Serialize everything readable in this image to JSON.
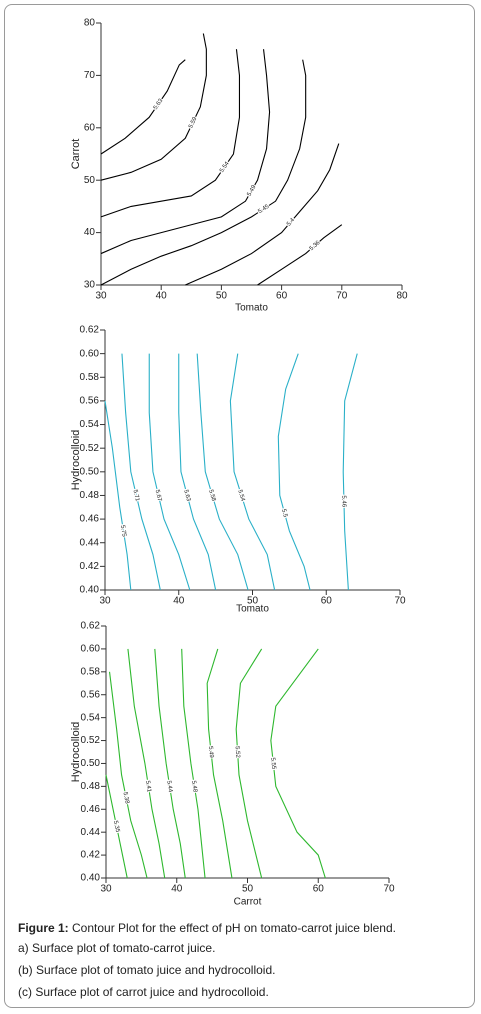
{
  "chart_data": [
    {
      "type": "contour",
      "xlabel": "Tomato",
      "ylabel": "Carrot",
      "color": "#000000",
      "xlim": [
        30,
        80
      ],
      "ylim": [
        30,
        80
      ],
      "xticks": [
        30,
        40,
        50,
        60,
        70,
        80
      ],
      "yticks": [
        30,
        40,
        50,
        60,
        70,
        80
      ],
      "contours": [
        {
          "level": 5.63,
          "x": [
            30,
            34,
            38,
            41,
            43,
            44
          ],
          "y": [
            55,
            58,
            62,
            67,
            72,
            73
          ]
        },
        {
          "level": 5.59,
          "x": [
            30,
            35,
            40,
            44,
            46.5,
            47.5,
            47.5,
            47
          ],
          "y": [
            50,
            51.5,
            54,
            58,
            64,
            70,
            75,
            78
          ]
        },
        {
          "level": 5.54,
          "x": [
            30,
            35,
            40,
            45,
            49,
            52,
            53,
            53,
            52.5
          ],
          "y": [
            43,
            45,
            46,
            47,
            50,
            55,
            62,
            70,
            75
          ]
        },
        {
          "level": 5.49,
          "x": [
            30,
            35,
            40,
            45,
            50,
            54,
            56,
            57.5,
            58,
            57.5,
            57
          ],
          "y": [
            36,
            38.5,
            40,
            41.5,
            43,
            46,
            50,
            56,
            63,
            70,
            75
          ]
        },
        {
          "level": 5.45,
          "x": [
            30,
            35,
            40,
            45,
            50,
            55,
            59,
            61,
            63,
            64,
            64,
            63.5
          ],
          "y": [
            30,
            33,
            35.5,
            37.5,
            40,
            43,
            46,
            50,
            56,
            62,
            70,
            73
          ]
        },
        {
          "level": 5.4,
          "x": [
            44,
            50,
            55,
            60,
            63,
            66,
            68,
            69.5
          ],
          "y": [
            30,
            33,
            36,
            40,
            44,
            48,
            52,
            57
          ]
        },
        {
          "level": 5.36,
          "x": [
            56,
            60,
            64,
            67,
            70
          ],
          "y": [
            30,
            33,
            36,
            39,
            41.5
          ]
        }
      ]
    },
    {
      "type": "contour",
      "xlabel": "Tomato",
      "ylabel": "Hydrocolloid",
      "color": "#2ab0c8",
      "xlim": [
        30,
        70
      ],
      "ylim": [
        0.4,
        0.62
      ],
      "xticks": [
        30,
        40,
        50,
        60,
        70
      ],
      "yticks": [
        {
          "value": 0.4,
          "label": "0.40"
        },
        {
          "value": 0.42,
          "label": "0.42"
        },
        {
          "value": 0.44,
          "label": "0.44"
        },
        {
          "value": 0.46,
          "label": "0.46"
        },
        {
          "value": 0.48,
          "label": "0.48"
        },
        {
          "value": 0.5,
          "label": "0.50"
        },
        {
          "value": 0.52,
          "label": "0.52"
        },
        {
          "value": 0.54,
          "label": "0.54"
        },
        {
          "value": 0.56,
          "label": "0.56"
        },
        {
          "value": 0.58,
          "label": "0.58"
        },
        {
          "value": 0.6,
          "label": "0.60"
        },
        {
          "value": 0.62,
          "label": "0.62"
        }
      ],
      "contours": [
        {
          "level": 5.75,
          "x": [
            30,
            31,
            32,
            33,
            33.5
          ],
          "y": [
            0.56,
            0.52,
            0.47,
            0.43,
            0.4
          ]
        },
        {
          "level": 5.71,
          "x": [
            32.3,
            32.8,
            33.5,
            35,
            36.5,
            37.5
          ],
          "y": [
            0.6,
            0.55,
            0.5,
            0.46,
            0.43,
            0.4
          ]
        },
        {
          "level": 5.67,
          "x": [
            36,
            36,
            36.5,
            38,
            40,
            41.5
          ],
          "y": [
            0.6,
            0.55,
            0.5,
            0.46,
            0.43,
            0.4
          ]
        },
        {
          "level": 5.63,
          "x": [
            40,
            40,
            40.3,
            42,
            44,
            45
          ],
          "y": [
            0.6,
            0.55,
            0.5,
            0.46,
            0.43,
            0.4
          ]
        },
        {
          "level": 5.58,
          "x": [
            42.5,
            43,
            43.6,
            45.5,
            48,
            49.4
          ],
          "y": [
            0.6,
            0.55,
            0.5,
            0.46,
            0.43,
            0.4
          ]
        },
        {
          "level": 5.54,
          "x": [
            48,
            47,
            47.5,
            49.5,
            52,
            53
          ],
          "y": [
            0.6,
            0.56,
            0.5,
            0.46,
            0.43,
            0.4
          ]
        },
        {
          "level": 5.5,
          "x": [
            56.2,
            54.5,
            53.5,
            53.7,
            55,
            57,
            57.8
          ],
          "y": [
            0.6,
            0.57,
            0.53,
            0.48,
            0.45,
            0.42,
            0.4
          ]
        },
        {
          "level": 5.46,
          "x": [
            64.2,
            62.5,
            62.3,
            62.5,
            63
          ],
          "y": [
            0.6,
            0.56,
            0.5,
            0.45,
            0.4
          ]
        }
      ]
    },
    {
      "type": "contour",
      "xlabel": "Carrot",
      "ylabel": "Hydrocolloid",
      "color": "#2eb82e",
      "xlim": [
        30,
        70
      ],
      "ylim": [
        0.4,
        0.62
      ],
      "xticks": [
        30,
        40,
        50,
        60,
        70
      ],
      "yticks": [
        {
          "value": 0.4,
          "label": "0.40"
        },
        {
          "value": 0.42,
          "label": "0.42"
        },
        {
          "value": 0.44,
          "label": "0.44"
        },
        {
          "value": 0.46,
          "label": "0.46"
        },
        {
          "value": 0.48,
          "label": "0.48"
        },
        {
          "value": 0.5,
          "label": "0.50"
        },
        {
          "value": 0.52,
          "label": "0.52"
        },
        {
          "value": 0.54,
          "label": "0.54"
        },
        {
          "value": 0.56,
          "label": "0.56"
        },
        {
          "value": 0.58,
          "label": "0.58"
        },
        {
          "value": 0.6,
          "label": "0.60"
        },
        {
          "value": 0.62,
          "label": "0.62"
        }
      ],
      "contours": [
        {
          "level": 5.35,
          "x": [
            30,
            31,
            32,
            33
          ],
          "y": [
            0.49,
            0.46,
            0.43,
            0.4
          ]
        },
        {
          "level": 5.38,
          "x": [
            30.5,
            31.5,
            32.2,
            33.5,
            35,
            35.8
          ],
          "y": [
            0.58,
            0.53,
            0.49,
            0.45,
            0.42,
            0.4
          ]
        },
        {
          "level": 5.41,
          "x": [
            33.1,
            34,
            35.5,
            36.5,
            37.5,
            38.3
          ],
          "y": [
            0.6,
            0.55,
            0.5,
            0.46,
            0.43,
            0.4
          ]
        },
        {
          "level": 5.44,
          "x": [
            36.9,
            37.5,
            38.5,
            39.5,
            40.5,
            41.2
          ],
          "y": [
            0.6,
            0.55,
            0.5,
            0.46,
            0.43,
            0.4
          ]
        },
        {
          "level": 5.48,
          "x": [
            40.7,
            41,
            42,
            43,
            43.5,
            44
          ],
          "y": [
            0.6,
            0.55,
            0.5,
            0.46,
            0.43,
            0.4
          ]
        },
        {
          "level": 5.49,
          "x": [
            45.8,
            44.3,
            44.5,
            45.2,
            46.5,
            47.8
          ],
          "y": [
            0.6,
            0.57,
            0.53,
            0.49,
            0.45,
            0.4
          ]
        },
        {
          "level": 5.52,
          "x": [
            52,
            49,
            48.4,
            48.8,
            50,
            52
          ],
          "y": [
            0.6,
            0.57,
            0.53,
            0.49,
            0.45,
            0.4
          ]
        },
        {
          "level": 5.55,
          "x": [
            60,
            57,
            54,
            53.3,
            54,
            57,
            60,
            61
          ],
          "y": [
            0.6,
            0.575,
            0.55,
            0.52,
            0.48,
            0.44,
            0.42,
            0.4
          ]
        }
      ]
    }
  ],
  "caption": {
    "figure_label": "Figure 1:",
    "text": " Contour Plot for the effect of pH on tomato-carrot juice blend.",
    "items": [
      "a) Surface plot of tomato-carrot juice.",
      "(b) Surface plot of tomato juice and hydrocolloid.",
      "(c)  Surface plot of carrot juice and hydrocolloid."
    ]
  }
}
